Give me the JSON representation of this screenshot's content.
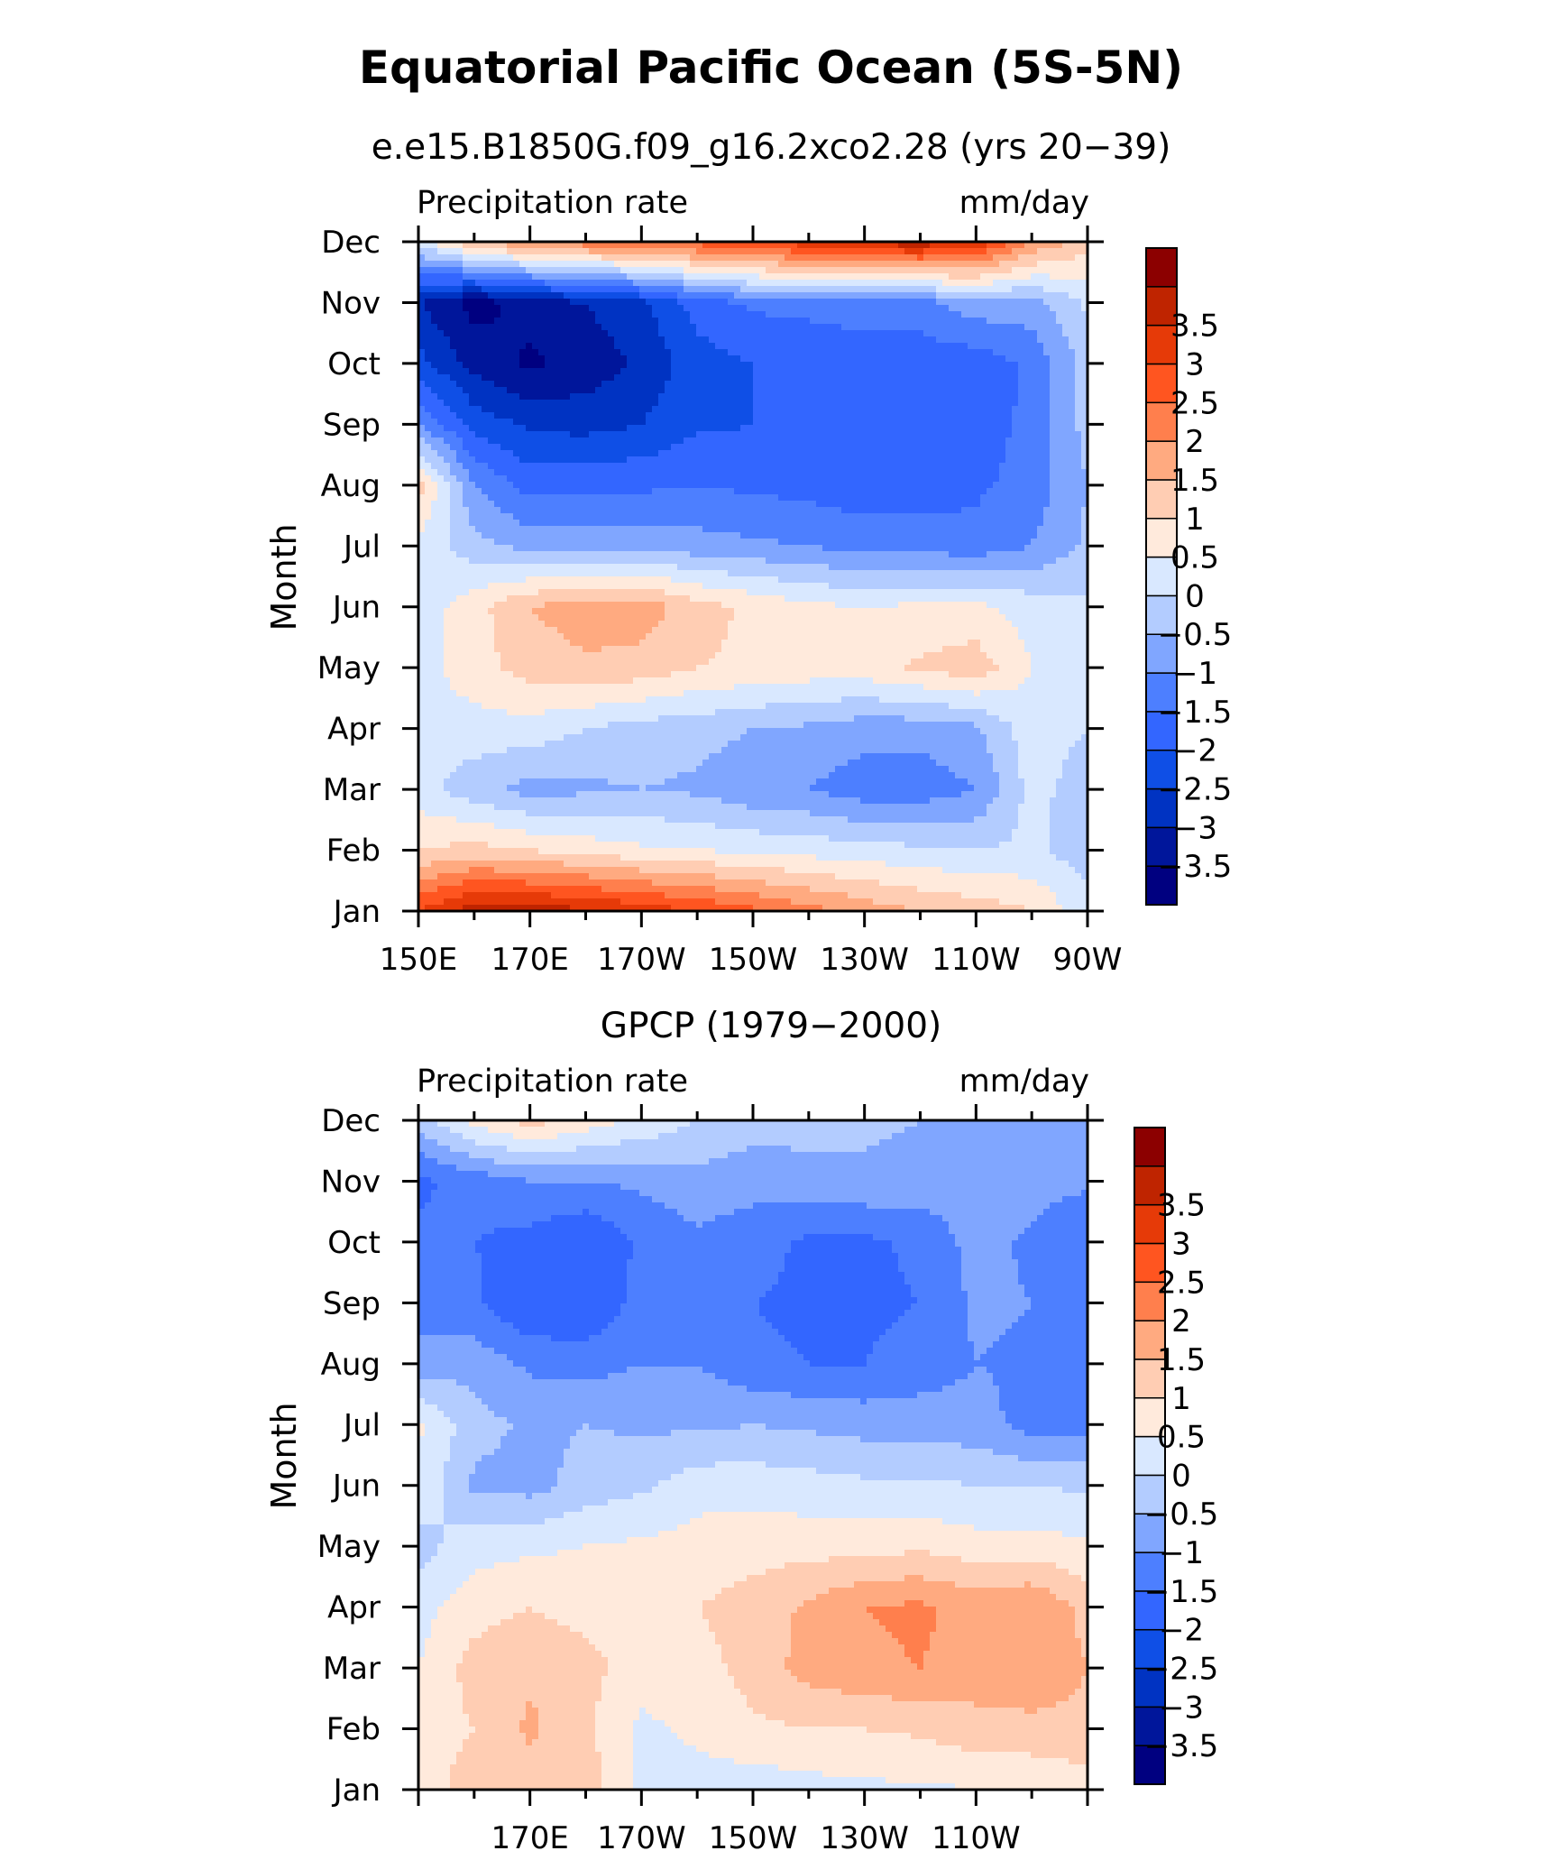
{
  "figure": {
    "title": "Equatorial Pacific Ocean (5S-5N)"
  },
  "colorbar": {
    "colors": [
      "#000080",
      "#00169b",
      "#0033c2",
      "#0f4fe6",
      "#3366ff",
      "#4d7fff",
      "#80a6ff",
      "#b3ccff",
      "#d9e8ff",
      "#ffeadc",
      "#ffcdb3",
      "#ffaa80",
      "#ff7f4d",
      "#ff5520",
      "#e63a08",
      "#bf2400",
      "#8c0000"
    ],
    "labels": [
      "-3.5",
      "-3",
      "-2.5",
      "-2",
      "-1.5",
      "-1",
      "-0.5",
      "0",
      "0.5",
      "1",
      "1.5",
      "2",
      "2.5",
      "3",
      "3.5"
    ]
  },
  "chart_data": [
    {
      "type": "heatmap",
      "title": "e.e15.B1850G.f09_g16.2xco2.28 (yrs 20−39)",
      "left_label": "Precipitation rate",
      "right_label": "mm/day",
      "xlabel": "",
      "ylabel": "Month",
      "x": [
        150,
        160,
        170,
        180,
        190,
        200,
        210,
        220,
        230,
        240,
        250,
        260,
        270
      ],
      "x_tick_labels": [
        "150E",
        "170E",
        "170W",
        "150W",
        "130W",
        "110W",
        "90W"
      ],
      "x_tick_values": [
        150,
        170,
        190,
        210,
        230,
        250,
        270
      ],
      "y_tick_labels": [
        "Jan",
        "Feb",
        "Mar",
        "Apr",
        "May",
        "Jun",
        "Jul",
        "Aug",
        "Sep",
        "Oct",
        "Nov",
        "Dec"
      ],
      "levels": [
        -3.5,
        -3,
        -2.5,
        -2,
        -1.5,
        -1,
        -0.5,
        0,
        0.5,
        1,
        1.5,
        2,
        2.5,
        3,
        3.5
      ],
      "z_units": "mm/day",
      "z": [
        [
          3.0,
          3.8,
          3.8,
          3.6,
          3.3,
          3.0,
          2.6,
          2.2,
          1.8,
          1.5,
          1.3,
          1.0,
          0.2
        ],
        [
          1.0,
          1.2,
          1.0,
          0.8,
          0.6,
          0.5,
          0.4,
          0.3,
          0.2,
          0.1,
          0.0,
          0.1,
          -0.3
        ],
        [
          0.2,
          -0.3,
          -0.7,
          -0.6,
          -0.5,
          -0.6,
          -0.9,
          -1.0,
          -1.3,
          -1.3,
          -1.0,
          0.2,
          -0.3
        ],
        [
          0.2,
          0.3,
          0.3,
          0.0,
          -0.2,
          -0.3,
          -0.5,
          -0.6,
          -0.8,
          -0.8,
          -0.6,
          0.3,
          0.0
        ],
        [
          0.3,
          0.8,
          1.2,
          1.4,
          1.3,
          1.0,
          0.9,
          0.8,
          0.8,
          1.1,
          1.3,
          0.5,
          0.1
        ],
        [
          0.2,
          0.8,
          1.5,
          1.8,
          1.8,
          1.2,
          0.9,
          0.6,
          0.5,
          0.6,
          0.6,
          0.3,
          0.1
        ],
        [
          0.4,
          -0.3,
          -0.7,
          -0.7,
          -0.7,
          -0.8,
          -0.9,
          -1.0,
          -1.2,
          -1.2,
          -1.3,
          -1.0,
          -0.4
        ],
        [
          1.2,
          -1.0,
          -1.7,
          -1.6,
          -1.6,
          -1.5,
          -1.6,
          -1.7,
          -1.8,
          -1.8,
          -1.6,
          -1.3,
          -0.5
        ],
        [
          -1.0,
          -2.2,
          -2.6,
          -2.7,
          -2.5,
          -2.1,
          -2.0,
          -1.9,
          -1.9,
          -1.8,
          -1.7,
          -1.4,
          -0.3
        ],
        [
          -2.3,
          -3.2,
          -3.6,
          -3.3,
          -2.9,
          -2.2,
          -2.0,
          -2.0,
          -1.8,
          -1.8,
          -1.8,
          -1.4,
          -0.3
        ],
        [
          -3.0,
          -3.7,
          -3.3,
          -3.0,
          -2.6,
          -1.8,
          -1.4,
          -1.3,
          -1.2,
          -1.2,
          -0.7,
          -0.7,
          0.1
        ],
        [
          0.2,
          1.5,
          2.0,
          2.3,
          2.5,
          2.7,
          3.0,
          3.3,
          3.7,
          3.8,
          3.4,
          2.0,
          1.2
        ]
      ]
    },
    {
      "type": "heatmap",
      "title": "GPCP (1979−2000)",
      "left_label": "Precipitation rate",
      "right_label": "mm/day",
      "xlabel": "",
      "ylabel": "Month",
      "x": [
        150,
        160,
        170,
        180,
        190,
        200,
        210,
        220,
        230,
        240,
        250,
        260,
        270
      ],
      "x_tick_labels": [
        "170E",
        "170W",
        "150W",
        "130W",
        "110W"
      ],
      "x_tick_values": [
        170,
        190,
        210,
        230,
        250
      ],
      "y_tick_labels": [
        "Jan",
        "Feb",
        "Mar",
        "Apr",
        "May",
        "Jun",
        "Jul",
        "Aug",
        "Sep",
        "Oct",
        "Nov",
        "Dec"
      ],
      "levels": [
        -3.5,
        -3,
        -2.5,
        -2,
        -1.5,
        -1,
        -0.5,
        0,
        0.5,
        1,
        1.5,
        2,
        2.5,
        3,
        3.5
      ],
      "z_units": "mm/day",
      "z": [
        [
          0.8,
          1.2,
          1.3,
          1.3,
          0.4,
          0.3,
          0.2,
          0.3,
          0.4,
          0.4,
          0.5,
          0.6,
          0.8
        ],
        [
          0.8,
          1.0,
          1.6,
          1.1,
          0.4,
          0.6,
          0.9,
          1.0,
          1.0,
          1.1,
          1.3,
          1.3,
          1.3
        ],
        [
          0.5,
          1.2,
          1.4,
          1.2,
          0.7,
          0.8,
          1.2,
          1.7,
          1.9,
          2.0,
          1.8,
          2.0,
          1.5
        ],
        [
          0.3,
          0.8,
          1.0,
          0.8,
          0.9,
          1.0,
          1.2,
          1.6,
          2.0,
          2.1,
          1.8,
          2.0,
          1.3
        ],
        [
          -0.2,
          0.3,
          0.4,
          0.5,
          0.6,
          0.7,
          0.8,
          0.8,
          0.8,
          0.9,
          0.7,
          0.7,
          0.6
        ],
        [
          0.4,
          -0.6,
          -0.7,
          -0.3,
          -0.1,
          0.3,
          0.3,
          0.2,
          0.1,
          0.1,
          0.0,
          0.0,
          -0.1
        ],
        [
          0.6,
          -0.3,
          -0.6,
          -0.5,
          -0.6,
          -0.6,
          -0.5,
          -0.6,
          -0.7,
          -0.7,
          -0.8,
          -1.2,
          -1.2
        ],
        [
          -0.8,
          -0.7,
          -1.1,
          -1.2,
          -1.0,
          -1.0,
          -1.4,
          -1.5,
          -1.5,
          -1.3,
          -1.0,
          -1.1,
          -1.3
        ],
        [
          -1.2,
          -1.4,
          -2.0,
          -2.0,
          -1.3,
          -1.2,
          -1.5,
          -1.6,
          -1.6,
          -1.5,
          -0.9,
          -1.0,
          -1.3
        ],
        [
          -1.4,
          -1.5,
          -1.7,
          -2.0,
          -1.4,
          -1.1,
          -1.3,
          -1.6,
          -1.6,
          -1.4,
          -0.8,
          -1.1,
          -1.5
        ],
        [
          -1.6,
          -1.3,
          -1.0,
          -1.0,
          -0.9,
          -0.7,
          -0.8,
          -0.7,
          -0.6,
          -0.7,
          -0.7,
          -0.8,
          -0.9
        ],
        [
          -0.3,
          0.7,
          1.2,
          0.8,
          0.4,
          0.0,
          -0.3,
          -0.3,
          -0.4,
          -0.5,
          -0.6,
          -0.7,
          -0.7
        ]
      ]
    }
  ]
}
